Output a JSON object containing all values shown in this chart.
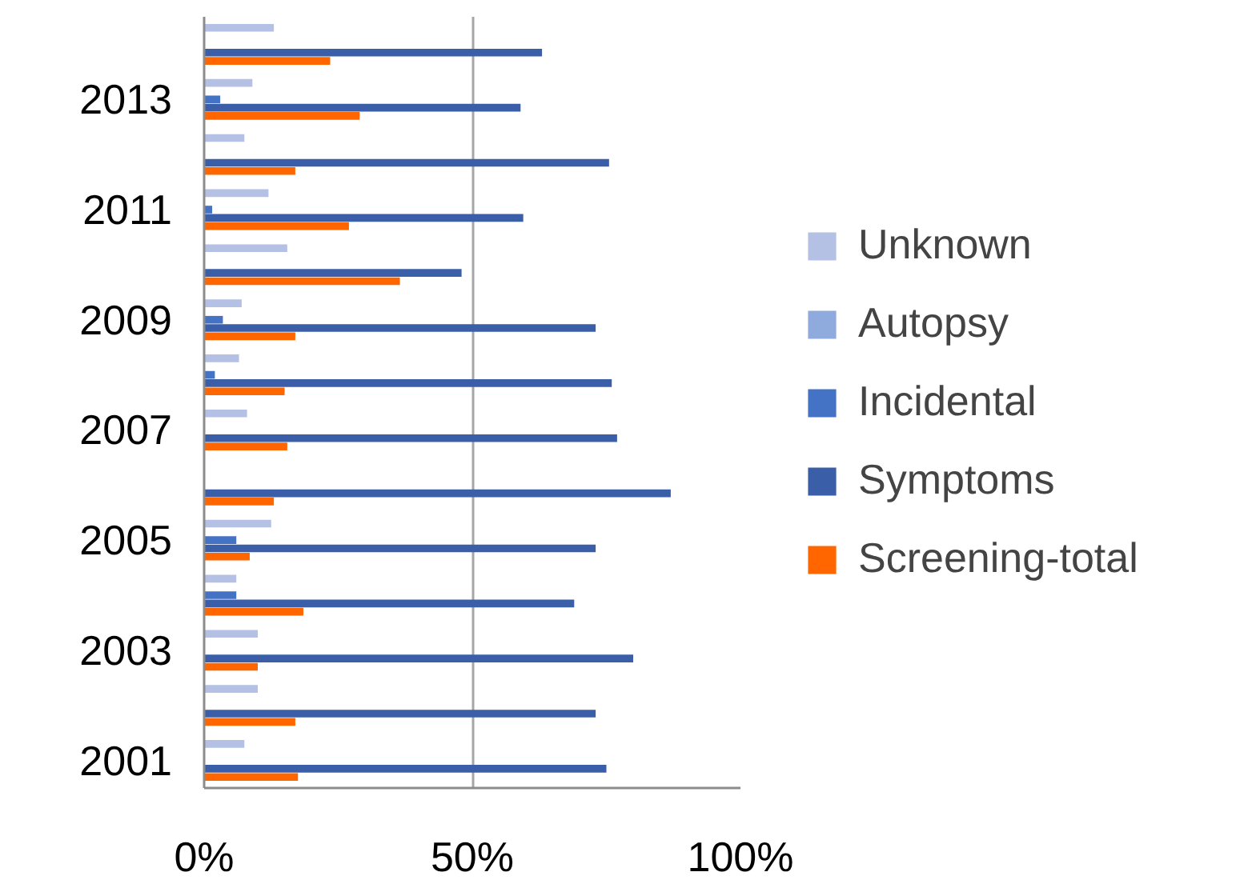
{
  "chart_data": {
    "type": "bar",
    "orientation": "horizontal",
    "categories": [
      null,
      "2013",
      null,
      "2011",
      null,
      "2009",
      null,
      "2007",
      null,
      "2005",
      null,
      "2003",
      null,
      "2001"
    ],
    "series": [
      {
        "name": "Unknown",
        "color": "#b4c0e4",
        "values": [
          13,
          9,
          7.5,
          12,
          15.5,
          7,
          6.5,
          8,
          0,
          12.5,
          6,
          10,
          10,
          7.5
        ]
      },
      {
        "name": "Autopsy",
        "color": "#8faadc",
        "values": [
          0,
          0,
          0,
          0,
          0,
          0,
          0,
          0,
          0,
          0,
          0,
          0,
          0,
          0
        ]
      },
      {
        "name": "Incidental",
        "color": "#4472c4",
        "values": [
          0,
          3,
          0,
          1.5,
          0,
          3.5,
          2,
          0,
          0,
          6,
          6,
          0,
          0,
          0
        ]
      },
      {
        "name": "Symptoms",
        "color": "#3a5fa8",
        "values": [
          63,
          59,
          75.5,
          59.5,
          48,
          73,
          76,
          77,
          87,
          73,
          69,
          80,
          73,
          75
        ]
      },
      {
        "name": "Screening-total",
        "color": "#ff6600",
        "values": [
          23.5,
          29,
          17,
          27,
          36.5,
          17,
          15,
          15.5,
          13,
          8.5,
          18.5,
          10,
          17,
          17.5
        ]
      }
    ],
    "xlim": [
      0,
      100
    ],
    "xticks": [
      {
        "value": 0,
        "label": "0%"
      },
      {
        "value": 50,
        "label": "50%"
      },
      {
        "value": 100,
        "label": "100%"
      }
    ],
    "grid": "x",
    "legend": "right"
  }
}
